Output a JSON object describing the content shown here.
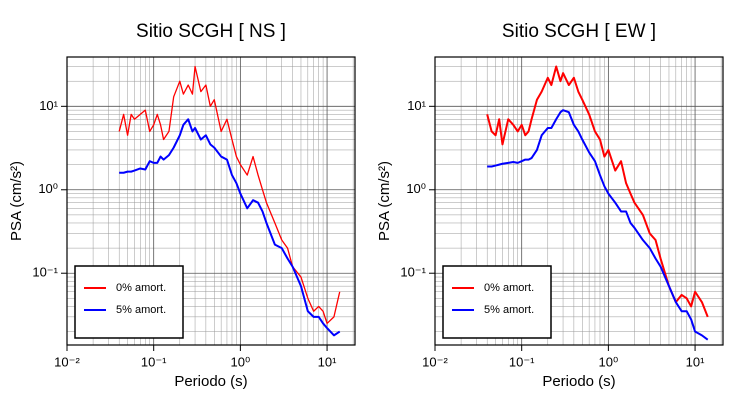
{
  "chart_data": [
    {
      "type": "line",
      "title": "Sitio SCGH [ NS ]",
      "xlabel": "Periodo (s)",
      "ylabel": "PSA (cm/s²)",
      "log_x": true,
      "log_y": true,
      "grid": true,
      "legend": "lower left",
      "xlim": [
        0.01,
        21
      ],
      "ylim": [
        0.0138,
        39
      ],
      "xticks": [
        {
          "value": 0.01,
          "label": "10⁻²"
        },
        {
          "value": 0.1,
          "label": "10⁻¹"
        },
        {
          "value": 1,
          "label": "10⁰"
        },
        {
          "value": 10,
          "label": "10¹"
        }
      ],
      "yticks": [
        {
          "value": 0.1,
          "label": "10⁻¹"
        },
        {
          "value": 1,
          "label": "10⁰"
        },
        {
          "value": 10,
          "label": "10¹"
        }
      ],
      "x": [
        0.04,
        0.045,
        0.05,
        0.055,
        0.06,
        0.07,
        0.08,
        0.09,
        0.1,
        0.11,
        0.12,
        0.13,
        0.15,
        0.17,
        0.2,
        0.22,
        0.25,
        0.28,
        0.3,
        0.35,
        0.4,
        0.45,
        0.5,
        0.6,
        0.7,
        0.8,
        0.9,
        1,
        1.2,
        1.4,
        1.6,
        1.8,
        2,
        2.5,
        3,
        3.5,
        4,
        5,
        6,
        7,
        8,
        9,
        10,
        12,
        14
      ],
      "series": [
        {
          "name": "0% amort.",
          "color": "#ff0000",
          "width": 1.3,
          "values": [
            5,
            8,
            4.5,
            8,
            7,
            8,
            9,
            5,
            6,
            8,
            6,
            4,
            5,
            13,
            20,
            14,
            18,
            14,
            30,
            15,
            18,
            10,
            12,
            5,
            7,
            4,
            2.5,
            2,
            1.5,
            2.5,
            1.5,
            1,
            0.7,
            0.4,
            0.25,
            0.2,
            0.12,
            0.09,
            0.05,
            0.035,
            0.04,
            0.035,
            0.025,
            0.03,
            0.06
          ]
        },
        {
          "name": "5% amort.",
          "color": "#0000ff",
          "width": 2,
          "values": [
            1.6,
            1.6,
            1.65,
            1.65,
            1.7,
            1.8,
            1.75,
            2.2,
            2.1,
            2.1,
            2.5,
            2.3,
            2.6,
            3.2,
            4.5,
            6,
            7,
            5,
            5.5,
            4,
            4.5,
            3.5,
            3.2,
            2.5,
            2.3,
            1.5,
            1.2,
            0.9,
            0.6,
            0.75,
            0.7,
            0.55,
            0.4,
            0.22,
            0.2,
            0.15,
            0.12,
            0.07,
            0.035,
            0.03,
            0.03,
            0.025,
            0.022,
            0.018,
            0.02
          ]
        }
      ]
    },
    {
      "type": "line",
      "title": "Sitio SCGH [ EW ]",
      "xlabel": "Periodo (s)",
      "ylabel": "PSA (cm/s²)",
      "log_x": true,
      "log_y": true,
      "grid": true,
      "legend": "lower left",
      "xlim": [
        0.01,
        21
      ],
      "ylim": [
        0.0138,
        39
      ],
      "xticks": [
        {
          "value": 0.01,
          "label": "10⁻²"
        },
        {
          "value": 0.1,
          "label": "10⁻¹"
        },
        {
          "value": 1,
          "label": "10⁰"
        },
        {
          "value": 10,
          "label": "10¹"
        }
      ],
      "yticks": [
        {
          "value": 0.1,
          "label": "10⁻¹"
        },
        {
          "value": 1,
          "label": "10⁰"
        },
        {
          "value": 10,
          "label": "10¹"
        }
      ],
      "x": [
        0.04,
        0.045,
        0.05,
        0.055,
        0.06,
        0.07,
        0.08,
        0.09,
        0.1,
        0.11,
        0.12,
        0.13,
        0.15,
        0.17,
        0.2,
        0.22,
        0.25,
        0.28,
        0.3,
        0.35,
        0.4,
        0.45,
        0.5,
        0.6,
        0.7,
        0.8,
        0.9,
        1,
        1.2,
        1.4,
        1.6,
        1.8,
        2,
        2.5,
        3,
        3.5,
        4,
        5,
        6,
        7,
        8,
        9,
        10,
        12,
        14
      ],
      "series": [
        {
          "name": "0% amort.",
          "color": "#ff0000",
          "width": 2,
          "values": [
            8,
            5,
            4.5,
            7,
            3.5,
            7,
            6,
            5,
            6,
            4.5,
            5,
            7,
            12,
            15,
            22,
            18,
            30,
            20,
            25,
            18,
            22,
            15,
            12,
            8,
            5,
            4,
            2.5,
            3,
            1.7,
            2.2,
            1.2,
            0.9,
            0.7,
            0.5,
            0.3,
            0.25,
            0.15,
            0.07,
            0.045,
            0.055,
            0.05,
            0.04,
            0.06,
            0.045,
            0.03
          ]
        },
        {
          "name": "5% amort.",
          "color": "#0000ff",
          "width": 2,
          "values": [
            1.9,
            1.9,
            1.95,
            2,
            2.05,
            2.1,
            2.15,
            2.1,
            2.2,
            2.3,
            2.3,
            2.4,
            3,
            4.5,
            5.5,
            5.5,
            7,
            8.5,
            9,
            8.5,
            6,
            5,
            4,
            2.8,
            2.2,
            1.5,
            1.1,
            0.9,
            0.7,
            0.55,
            0.55,
            0.4,
            0.35,
            0.25,
            0.2,
            0.15,
            0.12,
            0.07,
            0.045,
            0.035,
            0.035,
            0.028,
            0.02,
            0.018,
            0.016
          ]
        }
      ]
    }
  ]
}
